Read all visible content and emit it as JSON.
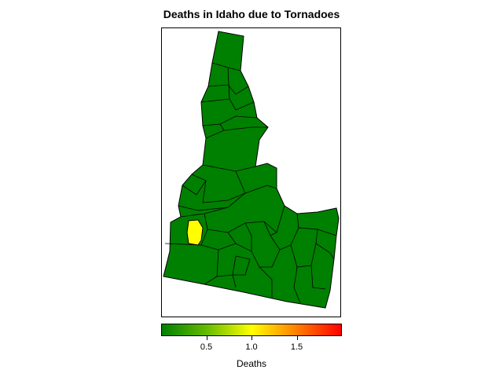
{
  "title": "Deaths in Idaho due to Tornadoes",
  "legend": {
    "title": "Deaths",
    "min": 0,
    "max": 2,
    "ticks": [
      {
        "value": 0.5,
        "label": "0.5"
      },
      {
        "value": 1.0,
        "label": "1.0"
      },
      {
        "value": 1.5,
        "label": "1.5"
      }
    ],
    "colors": [
      "#008000",
      "#ffff00",
      "#ff0000"
    ]
  },
  "map": {
    "region": "Idaho counties",
    "default_value": 0,
    "default_color": "#008000",
    "highlighted_value": 1,
    "highlighted_color": "#ffff00"
  }
}
